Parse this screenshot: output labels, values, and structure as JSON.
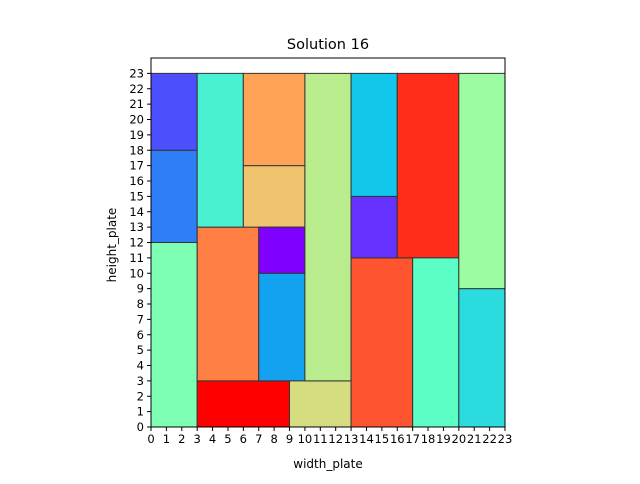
{
  "chart_data": {
    "type": "packing",
    "title": "Solution 16",
    "xlabel": "width_plate",
    "ylabel": "height_plate",
    "xlim": [
      0,
      23
    ],
    "ylim": [
      0,
      24
    ],
    "xticks": [
      0,
      1,
      2,
      3,
      4,
      5,
      6,
      7,
      8,
      9,
      10,
      11,
      12,
      13,
      14,
      15,
      16,
      17,
      18,
      19,
      20,
      21,
      22,
      23
    ],
    "yticks": [
      0,
      1,
      2,
      3,
      4,
      5,
      6,
      7,
      8,
      9,
      10,
      11,
      12,
      13,
      14,
      15,
      16,
      17,
      18,
      19,
      20,
      21,
      22,
      23
    ],
    "grid": false,
    "rectangles": [
      {
        "x": 0,
        "y": 0,
        "w": 3,
        "h": 12,
        "color": "#7dffb4"
      },
      {
        "x": 0,
        "y": 12,
        "w": 3,
        "h": 6,
        "color": "#2e7ef7"
      },
      {
        "x": 0,
        "y": 18,
        "w": 3,
        "h": 5,
        "color": "#4b50fc"
      },
      {
        "x": 3,
        "y": 0,
        "w": 6,
        "h": 3,
        "color": "#ff0000"
      },
      {
        "x": 3,
        "y": 3,
        "w": 4,
        "h": 10,
        "color": "#ff7f45"
      },
      {
        "x": 3,
        "y": 13,
        "w": 3,
        "h": 10,
        "color": "#49f0d2"
      },
      {
        "x": 6,
        "y": 13,
        "w": 4,
        "h": 4,
        "color": "#f0c46f"
      },
      {
        "x": 6,
        "y": 17,
        "w": 4,
        "h": 6,
        "color": "#ffa358"
      },
      {
        "x": 7,
        "y": 3,
        "w": 3,
        "h": 7,
        "color": "#12a2f0"
      },
      {
        "x": 7,
        "y": 10,
        "w": 3,
        "h": 3,
        "color": "#8000ff"
      },
      {
        "x": 9,
        "y": 0,
        "w": 4,
        "h": 3,
        "color": "#d5dd80"
      },
      {
        "x": 10,
        "y": 3,
        "w": 3,
        "h": 20,
        "color": "#b9ec8d"
      },
      {
        "x": 13,
        "y": 0,
        "w": 4,
        "h": 11,
        "color": "#ff5430"
      },
      {
        "x": 13,
        "y": 11,
        "w": 3,
        "h": 4,
        "color": "#6532ff"
      },
      {
        "x": 13,
        "y": 15,
        "w": 3,
        "h": 8,
        "color": "#12c7ea"
      },
      {
        "x": 16,
        "y": 11,
        "w": 4,
        "h": 12,
        "color": "#ff2d19"
      },
      {
        "x": 17,
        "y": 0,
        "w": 3,
        "h": 11,
        "color": "#5dfdc6"
      },
      {
        "x": 20,
        "y": 0,
        "w": 3,
        "h": 9,
        "color": "#2adcdd"
      },
      {
        "x": 20,
        "y": 9,
        "w": 3,
        "h": 14,
        "color": "#9bfca1"
      }
    ]
  }
}
